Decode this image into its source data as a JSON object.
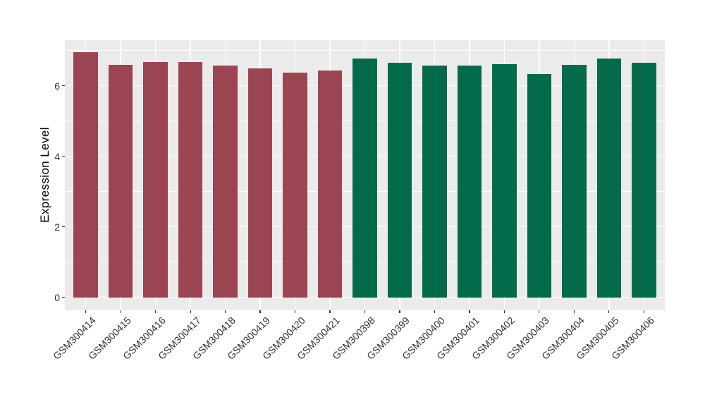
{
  "chart_data": {
    "type": "bar",
    "title": "",
    "xlabel": "",
    "ylabel": "Expression Level",
    "categories": [
      "GSM300414",
      "GSM300415",
      "GSM300416",
      "GSM300417",
      "GSM300418",
      "GSM300419",
      "GSM300420",
      "GSM300421",
      "GSM300398",
      "GSM300399",
      "GSM300400",
      "GSM300401",
      "GSM300402",
      "GSM300403",
      "GSM300404",
      "GSM300405",
      "GSM300406"
    ],
    "values": [
      6.95,
      6.59,
      6.67,
      6.68,
      6.57,
      6.5,
      6.37,
      6.44,
      6.78,
      6.65,
      6.58,
      6.58,
      6.61,
      6.33,
      6.6,
      6.78,
      6.66
    ],
    "groups": [
      0,
      0,
      0,
      0,
      0,
      0,
      0,
      0,
      1,
      1,
      1,
      1,
      1,
      1,
      1,
      1,
      1
    ],
    "group_colors": [
      "#9C4552",
      "#046A4C"
    ],
    "yticks": [
      0,
      2,
      4,
      6
    ],
    "minor_yticks": [
      1,
      3,
      5,
      7
    ],
    "ylim": [
      -0.37,
      7.29
    ],
    "bar_rel_width": 0.7,
    "grid": true,
    "legend": false,
    "panel_bg": "#EBEBEB",
    "grid_color": "#FFFFFF",
    "tick_color": "#333333",
    "axis_title_color": "#000000"
  }
}
